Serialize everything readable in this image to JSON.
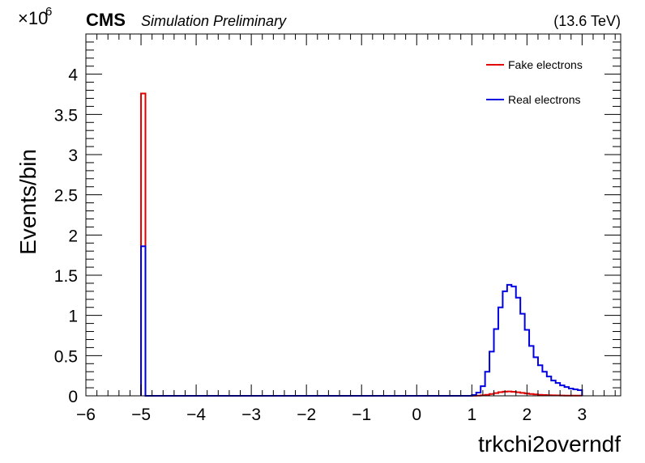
{
  "header": {
    "experiment": "CMS",
    "status": "Simulation Preliminary",
    "energy": "(13.6 TeV)"
  },
  "chart_data": {
    "type": "histogram",
    "xlabel": "trkchi2overndf",
    "ylabel": "Events/bin",
    "y_multiplier": "×10",
    "y_multiplier_exponent": "6",
    "xlim": [
      -6,
      3.7
    ],
    "ylim": [
      0,
      4.5
    ],
    "x_ticks": [
      "−6",
      "−5",
      "−4",
      "−3",
      "−2",
      "−1",
      "0",
      "1",
      "2",
      "3"
    ],
    "y_ticks": [
      "0",
      "0.5",
      "1",
      "1.5",
      "2",
      "2.5",
      "3",
      "3.5",
      "4"
    ],
    "legend_position": "top-right",
    "x_range": [
      -5,
      3
    ],
    "bin_width": 0.08,
    "series": [
      {
        "name": "Fake electrons",
        "color": "#e00000",
        "values_1e6": [
          3.76,
          0,
          0,
          0,
          0,
          0,
          0,
          0,
          0,
          0,
          0,
          0,
          0,
          0,
          0,
          0,
          0,
          0,
          0,
          0,
          0,
          0,
          0,
          0,
          0,
          0,
          0,
          0,
          0,
          0,
          0,
          0,
          0,
          0,
          0,
          0,
          0,
          0,
          0,
          0,
          0,
          0,
          0,
          0,
          0,
          0,
          0,
          0,
          0,
          0,
          0,
          0,
          0,
          0,
          0,
          0,
          0,
          0,
          0,
          0,
          0,
          0,
          0,
          0,
          0,
          0,
          0,
          0,
          0,
          0,
          0,
          0,
          0,
          0,
          0,
          0.001,
          0.003,
          0.006,
          0.012,
          0.022,
          0.034,
          0.045,
          0.052,
          0.054,
          0.05,
          0.044,
          0.036,
          0.029,
          0.022,
          0.017,
          0.013,
          0.01,
          0.008,
          0.006,
          0.005,
          0.004,
          0.003,
          0.003,
          0.002,
          0.002
        ]
      },
      {
        "name": "Real electrons",
        "color": "#0000e0",
        "values_1e6": [
          1.86,
          0,
          0,
          0,
          0,
          0,
          0,
          0,
          0,
          0,
          0,
          0,
          0,
          0,
          0,
          0,
          0,
          0,
          0,
          0,
          0,
          0,
          0,
          0,
          0,
          0,
          0,
          0,
          0,
          0,
          0,
          0,
          0,
          0,
          0,
          0,
          0,
          0,
          0,
          0,
          0,
          0,
          0,
          0,
          0,
          0,
          0,
          0,
          0,
          0,
          0,
          0,
          0,
          0,
          0,
          0,
          0,
          0,
          0,
          0,
          0,
          0,
          0,
          0,
          0,
          0,
          0,
          0,
          0,
          0,
          0,
          0,
          0,
          0,
          0,
          0.01,
          0.04,
          0.12,
          0.3,
          0.55,
          0.83,
          1.1,
          1.3,
          1.38,
          1.36,
          1.22,
          1.02,
          0.82,
          0.62,
          0.48,
          0.38,
          0.3,
          0.24,
          0.19,
          0.16,
          0.13,
          0.11,
          0.09,
          0.08,
          0.07
        ]
      }
    ]
  }
}
